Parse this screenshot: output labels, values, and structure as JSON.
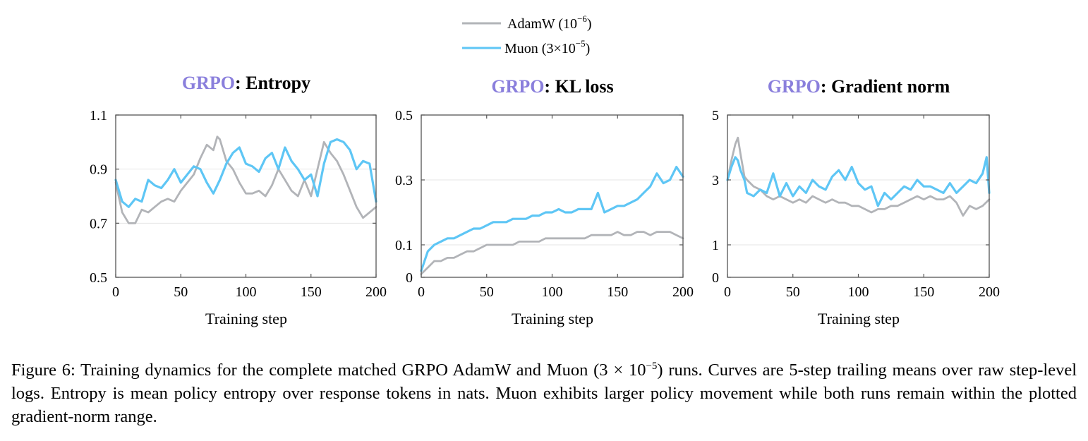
{
  "figure": {
    "legend": [
      {
        "label": "AdamW (10",
        "sup": "−6",
        "tail": ")",
        "color": "#b2b4b8"
      },
      {
        "label": "Muon (3×10",
        "sup": "−5",
        "tail": ")",
        "color": "#5ec6f5"
      }
    ],
    "title_prefix": "GRPO",
    "title_prefix_color": "#8a7fdc"
  },
  "chart_data": [
    {
      "type": "line",
      "title": "GRPO: Entropy",
      "title_main": ": Entropy",
      "xlabel": "Training step",
      "ylabel": "",
      "xlim": [
        0,
        200
      ],
      "ylim": [
        0.5,
        1.1
      ],
      "xticks": [
        0,
        50,
        100,
        150,
        200
      ],
      "yticks": [
        0.5,
        0.7,
        0.9,
        1.1
      ],
      "ytick_labels": [
        "0.5",
        "0.7",
        "0.9",
        "1.1"
      ],
      "grid": true,
      "series": [
        {
          "name": "AdamW (10−6)",
          "x": [
            0,
            5,
            10,
            15,
            20,
            25,
            30,
            35,
            40,
            45,
            50,
            55,
            60,
            65,
            70,
            75,
            78,
            80,
            85,
            90,
            95,
            100,
            105,
            110,
            115,
            120,
            125,
            130,
            135,
            140,
            145,
            150,
            155,
            160,
            165,
            170,
            175,
            180,
            185,
            190,
            195,
            200
          ],
          "y": [
            0.85,
            0.74,
            0.7,
            0.7,
            0.75,
            0.74,
            0.76,
            0.78,
            0.79,
            0.78,
            0.82,
            0.85,
            0.88,
            0.94,
            0.99,
            0.97,
            1.02,
            1.01,
            0.93,
            0.9,
            0.85,
            0.81,
            0.81,
            0.82,
            0.8,
            0.84,
            0.9,
            0.86,
            0.82,
            0.8,
            0.86,
            0.8,
            0.9,
            1.0,
            0.96,
            0.93,
            0.88,
            0.82,
            0.76,
            0.72,
            0.74,
            0.76
          ]
        },
        {
          "name": "Muon (3×10−5)",
          "x": [
            0,
            5,
            10,
            15,
            20,
            25,
            30,
            35,
            40,
            45,
            50,
            55,
            60,
            65,
            70,
            75,
            80,
            85,
            90,
            95,
            100,
            105,
            110,
            115,
            120,
            125,
            130,
            135,
            140,
            145,
            150,
            155,
            160,
            165,
            170,
            175,
            180,
            185,
            190,
            195,
            200
          ],
          "y": [
            0.86,
            0.78,
            0.76,
            0.79,
            0.78,
            0.86,
            0.84,
            0.83,
            0.86,
            0.9,
            0.85,
            0.88,
            0.91,
            0.9,
            0.85,
            0.81,
            0.86,
            0.92,
            0.96,
            0.98,
            0.92,
            0.91,
            0.89,
            0.94,
            0.96,
            0.9,
            0.98,
            0.93,
            0.9,
            0.86,
            0.88,
            0.8,
            0.92,
            1.0,
            1.01,
            1.0,
            0.97,
            0.9,
            0.93,
            0.92,
            0.78
          ]
        }
      ]
    },
    {
      "type": "line",
      "title": "GRPO: KL loss",
      "title_main": ": KL loss",
      "xlabel": "Training step",
      "ylabel": "",
      "xlim": [
        0,
        200
      ],
      "ylim": [
        0,
        0.5
      ],
      "xticks": [
        0,
        50,
        100,
        150,
        200
      ],
      "yticks": [
        0,
        0.1,
        0.3,
        0.5
      ],
      "ytick_labels": [
        "0",
        "0.1",
        "0.3",
        "0.5"
      ],
      "grid": true,
      "series": [
        {
          "name": "AdamW (10−6)",
          "x": [
            0,
            5,
            10,
            15,
            20,
            25,
            30,
            35,
            40,
            45,
            50,
            55,
            60,
            65,
            70,
            75,
            80,
            85,
            90,
            95,
            100,
            105,
            110,
            115,
            120,
            125,
            130,
            135,
            140,
            145,
            150,
            155,
            160,
            165,
            170,
            175,
            180,
            185,
            190,
            195,
            200
          ],
          "y": [
            0.01,
            0.03,
            0.05,
            0.05,
            0.06,
            0.06,
            0.07,
            0.08,
            0.08,
            0.09,
            0.1,
            0.1,
            0.1,
            0.1,
            0.1,
            0.11,
            0.11,
            0.11,
            0.11,
            0.12,
            0.12,
            0.12,
            0.12,
            0.12,
            0.12,
            0.12,
            0.13,
            0.13,
            0.13,
            0.13,
            0.14,
            0.13,
            0.13,
            0.14,
            0.14,
            0.13,
            0.14,
            0.14,
            0.14,
            0.13,
            0.12
          ]
        },
        {
          "name": "Muon (3×10−5)",
          "x": [
            0,
            5,
            10,
            15,
            20,
            25,
            30,
            35,
            40,
            45,
            50,
            55,
            60,
            65,
            70,
            75,
            80,
            85,
            90,
            95,
            100,
            105,
            110,
            115,
            120,
            125,
            130,
            135,
            140,
            145,
            150,
            155,
            160,
            165,
            170,
            175,
            180,
            185,
            190,
            195,
            200
          ],
          "y": [
            0.02,
            0.08,
            0.1,
            0.11,
            0.12,
            0.12,
            0.13,
            0.14,
            0.15,
            0.15,
            0.16,
            0.17,
            0.17,
            0.17,
            0.18,
            0.18,
            0.18,
            0.19,
            0.19,
            0.2,
            0.2,
            0.21,
            0.2,
            0.2,
            0.21,
            0.21,
            0.21,
            0.26,
            0.2,
            0.21,
            0.22,
            0.22,
            0.23,
            0.24,
            0.26,
            0.28,
            0.32,
            0.29,
            0.3,
            0.34,
            0.31
          ]
        }
      ]
    },
    {
      "type": "line",
      "title": "GRPO: Gradient norm",
      "title_main": ": Gradient norm",
      "xlabel": "Training step",
      "ylabel": "",
      "xlim": [
        0,
        200
      ],
      "ylim": [
        0,
        5
      ],
      "xticks": [
        0,
        50,
        100,
        150,
        200
      ],
      "yticks": [
        0,
        1,
        3,
        5
      ],
      "ytick_labels": [
        "0",
        "1",
        "3",
        "5"
      ],
      "grid": true,
      "series": [
        {
          "name": "AdamW (10−6)",
          "x": [
            0,
            3,
            6,
            8,
            10,
            13,
            15,
            20,
            25,
            30,
            35,
            40,
            45,
            50,
            55,
            60,
            65,
            70,
            75,
            80,
            85,
            90,
            95,
            100,
            105,
            110,
            115,
            120,
            125,
            130,
            135,
            140,
            145,
            150,
            155,
            160,
            165,
            170,
            175,
            180,
            185,
            190,
            195,
            200
          ],
          "y": [
            3.0,
            3.6,
            4.1,
            4.3,
            3.8,
            3.1,
            3.0,
            2.8,
            2.7,
            2.5,
            2.4,
            2.5,
            2.4,
            2.3,
            2.4,
            2.3,
            2.5,
            2.4,
            2.3,
            2.4,
            2.3,
            2.3,
            2.2,
            2.2,
            2.1,
            2.0,
            2.1,
            2.1,
            2.2,
            2.2,
            2.3,
            2.4,
            2.5,
            2.4,
            2.5,
            2.4,
            2.4,
            2.5,
            2.3,
            1.9,
            2.2,
            2.1,
            2.2,
            2.4
          ]
        },
        {
          "name": "Muon (3×10−5)",
          "x": [
            0,
            3,
            6,
            8,
            10,
            13,
            15,
            20,
            25,
            30,
            35,
            40,
            45,
            50,
            55,
            60,
            65,
            70,
            75,
            80,
            85,
            90,
            95,
            100,
            105,
            110,
            115,
            120,
            125,
            130,
            135,
            140,
            145,
            150,
            155,
            160,
            165,
            170,
            175,
            180,
            185,
            190,
            195,
            198,
            200
          ],
          "y": [
            3.0,
            3.4,
            3.7,
            3.6,
            3.3,
            3.0,
            2.6,
            2.5,
            2.7,
            2.6,
            3.2,
            2.5,
            2.9,
            2.5,
            2.8,
            2.6,
            3.0,
            2.8,
            2.7,
            3.1,
            3.3,
            3.0,
            3.4,
            2.9,
            2.7,
            2.8,
            2.2,
            2.6,
            2.4,
            2.6,
            2.8,
            2.7,
            3.0,
            2.8,
            2.8,
            2.7,
            2.6,
            2.9,
            2.6,
            2.8,
            3.0,
            2.9,
            3.2,
            3.7,
            2.6
          ]
        }
      ]
    }
  ],
  "caption": {
    "lead": "Figure 6: Training dynamics for the complete matched GRPO AdamW and Muon (3 × 10",
    "sup": "−5",
    "rest": ") runs. Curves are 5-step trailing means over raw step-level logs. Entropy is mean policy entropy over response tokens in nats. Muon exhibits larger policy movement while both runs remain within the plotted gradient-norm range."
  }
}
